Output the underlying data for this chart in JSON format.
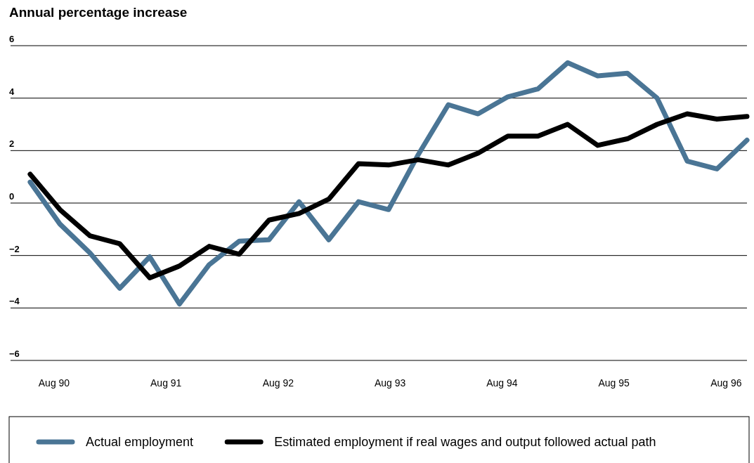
{
  "chart_data": {
    "type": "line",
    "title": "Annual percentage increase",
    "x": [
      "1990-05-29",
      "1990-09-03",
      "1990-12-10",
      "1991-03-17",
      "1991-06-23",
      "1991-09-28",
      "1992-01-03",
      "1992-04-10",
      "1992-07-16",
      "1992-10-22",
      "1993-01-27",
      "1993-05-04",
      "1993-08-10",
      "1993-11-15",
      "1994-02-21",
      "1994-05-29",
      "1994-09-03",
      "1994-12-10",
      "1995-03-17",
      "1995-06-23",
      "1995-09-28",
      "1996-01-03",
      "1996-04-10",
      "1996-07-16",
      "1996-10-22"
    ],
    "xlim": [
      "1990-03-26",
      "1996-10-22"
    ],
    "xticks": [
      {
        "value": "1990-08-15",
        "label": "Aug 90"
      },
      {
        "value": "1991-08-15",
        "label": "Aug 91"
      },
      {
        "value": "1992-08-15",
        "label": "Aug 92"
      },
      {
        "value": "1993-08-15",
        "label": "Aug 93"
      },
      {
        "value": "1994-08-15",
        "label": "Aug 94"
      },
      {
        "value": "1995-08-15",
        "label": "Aug 95"
      },
      {
        "value": "1996-08-15",
        "label": "Aug 96"
      }
    ],
    "ylim": [
      -6,
      6
    ],
    "yticks": [
      {
        "value": -6,
        "label": "−6"
      },
      {
        "value": -4,
        "label": "−4"
      },
      {
        "value": -2,
        "label": "−2"
      },
      0,
      2,
      4,
      6
    ],
    "grid": "y",
    "legend": "bottom",
    "line_style": "solid",
    "marker": "none",
    "series": [
      {
        "name": "Actual employment",
        "color": "#4a7595",
        "values": [
          0.8,
          -0.8,
          -1.9,
          -3.25,
          -2.05,
          -3.85,
          -2.35,
          -1.45,
          -1.4,
          0.05,
          -1.4,
          0.05,
          -0.25,
          1.85,
          3.75,
          3.4,
          4.05,
          4.35,
          5.35,
          4.85,
          4.95,
          4.0,
          1.6,
          1.3,
          2.4
        ]
      },
      {
        "name": "Estimated employment if real wages and output followed actual path",
        "color": "#000000",
        "values": [
          1.1,
          -0.25,
          -1.25,
          -1.55,
          -2.85,
          -2.4,
          -1.65,
          -1.95,
          -0.65,
          -0.4,
          0.15,
          1.5,
          1.45,
          1.65,
          1.45,
          1.9,
          2.55,
          2.55,
          3.0,
          2.2,
          2.45,
          3.0,
          3.4,
          3.2,
          3.3
        ]
      }
    ]
  }
}
